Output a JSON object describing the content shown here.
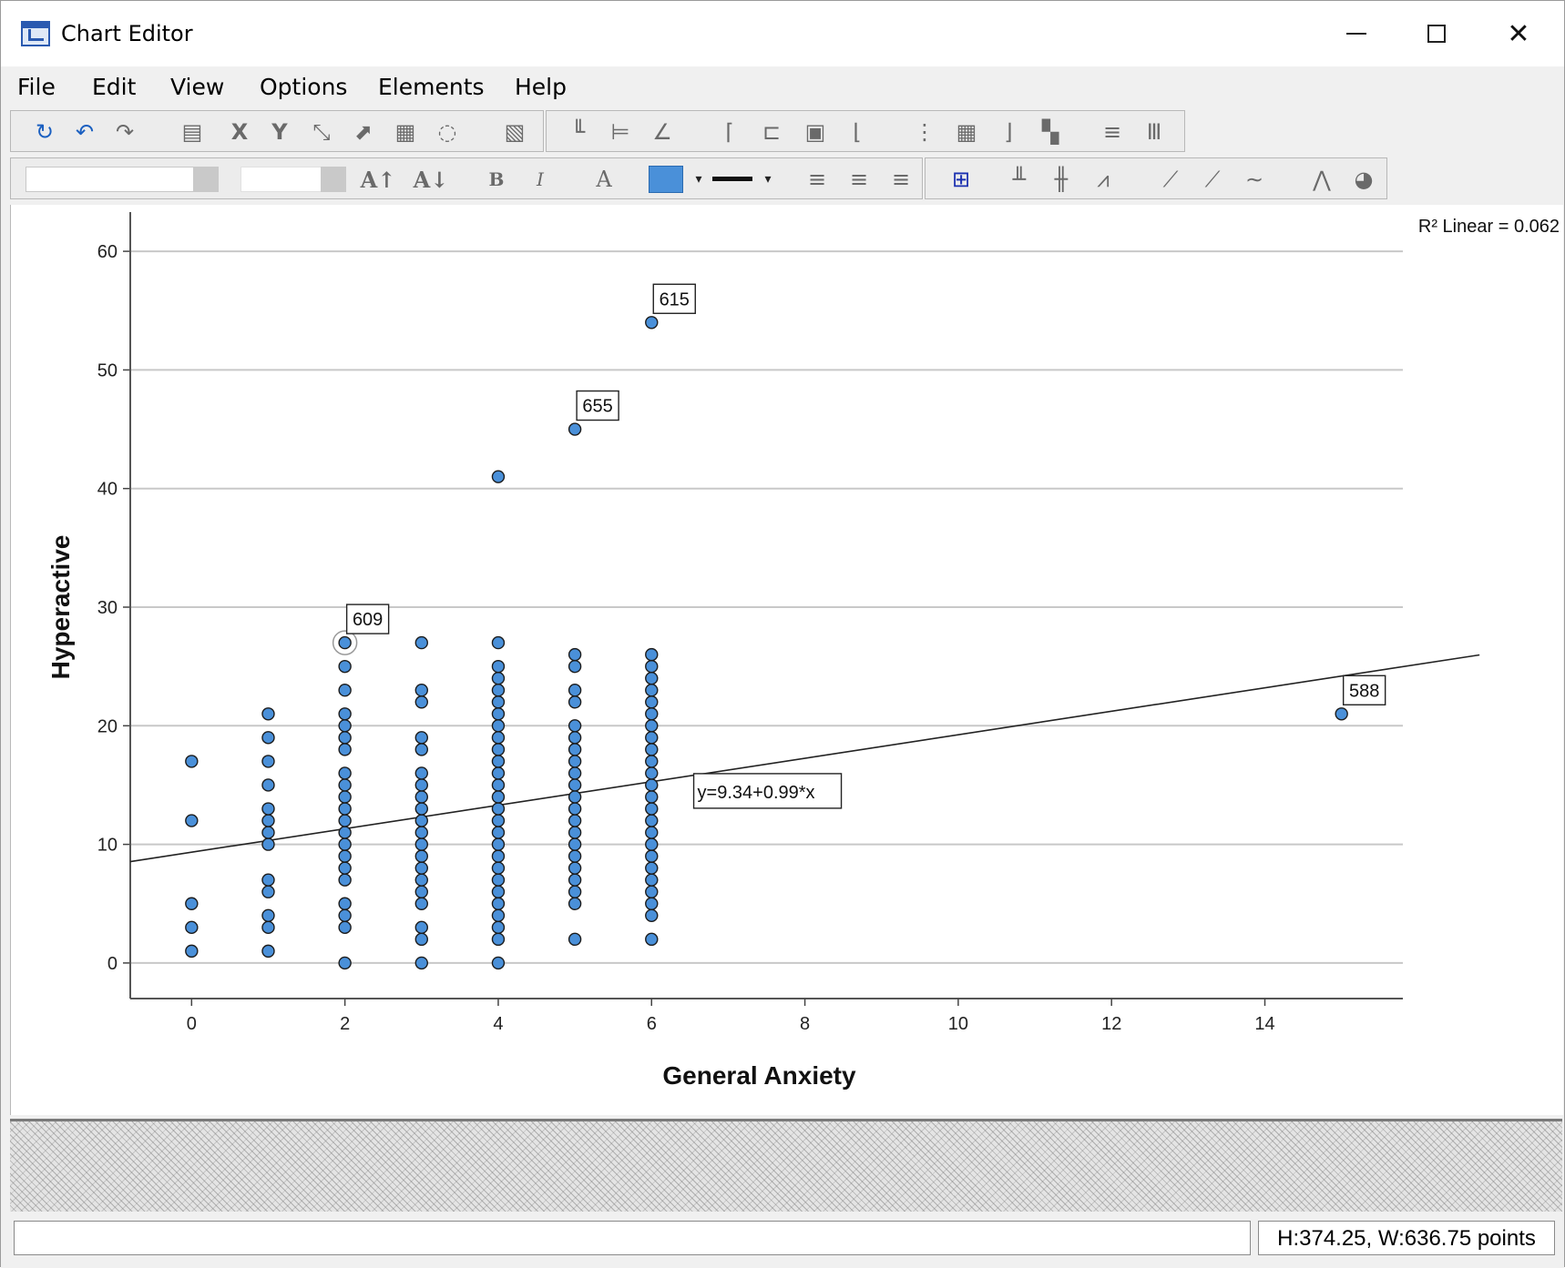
{
  "window": {
    "title": "Chart Editor"
  },
  "menu": [
    "File",
    "Edit",
    "View",
    "Options",
    "Elements",
    "Help"
  ],
  "toolbar": {
    "row1_icons": [
      "undo-icon",
      "redo-icon",
      "forward-icon",
      "properties-icon",
      "x-axis-icon",
      "y-axis-icon",
      "scale-icon",
      "resize-icon",
      "frame-icon",
      "lasso-icon",
      "table-icon",
      "bar-chart-icon",
      "error-bar-icon",
      "line-icon",
      "title-icon",
      "footnote-icon",
      "annotation-icon",
      "legend-icon",
      "grid-icon",
      "grid-major-icon",
      "axis-icon",
      "label-icon",
      "sort-icon",
      "bars-icon"
    ],
    "row2_icons": [
      "font-increase-icon",
      "font-decrease-icon",
      "bold-icon",
      "italic-icon",
      "text-color-icon",
      "fill-color-icon",
      "line-style-icon",
      "align-left-icon",
      "align-center-icon",
      "align-right-icon",
      "data-label-icon",
      "histogram-icon",
      "stacked-bar-icon",
      "line-chart-icon",
      "fit-line-icon",
      "interpolation-icon",
      "line-total-icon",
      "distribution-icon",
      "pie-icon"
    ],
    "fill_color": "#4a90d9"
  },
  "statusbar": {
    "left": "",
    "right": "H:374.25, W:636.75 points"
  },
  "chart_data": {
    "type": "scatter",
    "title": "",
    "xlabel": "General Anxiety",
    "ylabel": "Hyperactive",
    "xlim": [
      -0.8,
      15.8
    ],
    "ylim": [
      -3,
      63
    ],
    "xticks": [
      0,
      2,
      4,
      6,
      8,
      10,
      12,
      14
    ],
    "yticks": [
      0,
      10,
      20,
      30,
      40,
      50,
      60
    ],
    "grid": "horizontal",
    "r2_label": "R² Linear = 0.062",
    "fit_line": {
      "label": "y=9.34+0.99*x",
      "intercept": 9.34,
      "slope": 0.99
    },
    "point_color": "#4a90d9",
    "points": {
      "0": [
        1,
        3,
        5,
        12,
        17
      ],
      "1": [
        1,
        3,
        4,
        6,
        7,
        10,
        11,
        12,
        13,
        15,
        17,
        19,
        21
      ],
      "2": [
        0,
        3,
        4,
        5,
        7,
        8,
        9,
        10,
        11,
        12,
        13,
        14,
        15,
        16,
        18,
        19,
        20,
        21,
        23,
        25,
        27
      ],
      "3": [
        0,
        2,
        3,
        5,
        6,
        7,
        8,
        9,
        10,
        11,
        12,
        13,
        14,
        15,
        16,
        18,
        19,
        22,
        23,
        27
      ],
      "4": [
        0,
        2,
        3,
        4,
        5,
        6,
        7,
        8,
        9,
        10,
        11,
        12,
        13,
        14,
        15,
        16,
        17,
        18,
        19,
        20,
        21,
        22,
        23,
        24,
        25,
        27,
        41
      ],
      "5": [
        2,
        5,
        6,
        7,
        8,
        9,
        10,
        11,
        12,
        13,
        14,
        15,
        16,
        17,
        18,
        19,
        20,
        22,
        23,
        25,
        26,
        45
      ],
      "6": [
        2,
        4,
        5,
        6,
        7,
        8,
        9,
        10,
        11,
        12,
        13,
        14,
        15,
        16,
        17,
        18,
        19,
        20,
        21,
        22,
        23,
        24,
        25,
        26,
        54
      ],
      "15": [
        21
      ]
    },
    "labeled_points": [
      {
        "x": 6,
        "y": 54,
        "label": "615"
      },
      {
        "x": 5,
        "y": 45,
        "label": "655"
      },
      {
        "x": 2,
        "y": 27,
        "label": "609"
      },
      {
        "x": 15,
        "y": 21,
        "label": "588"
      }
    ]
  }
}
